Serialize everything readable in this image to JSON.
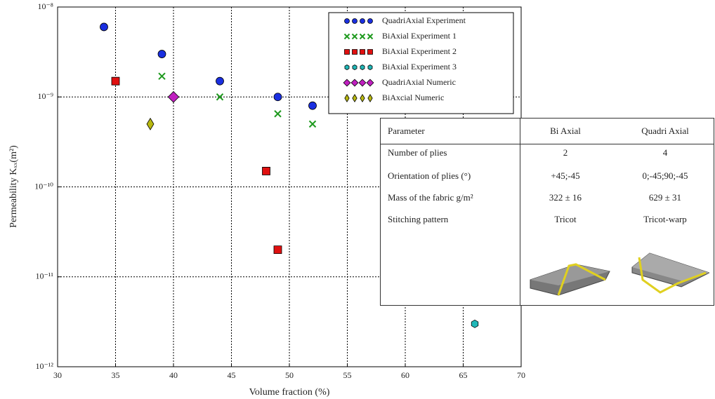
{
  "chart_data": {
    "type": "scatter",
    "x_label": "Volume fraction (%)",
    "y_label": "Permeability Kₓₓ(m²)",
    "xlim": [
      30,
      70
    ],
    "xticks": [
      30,
      35,
      40,
      45,
      50,
      55,
      60,
      65,
      70
    ],
    "ylim": [
      1e-12,
      1e-08
    ],
    "yscale": "log",
    "yticks": [
      {
        "value": 1e-12,
        "label": "10⁻¹²"
      },
      {
        "value": 1e-11,
        "label": "10⁻¹¹"
      },
      {
        "value": 1e-10,
        "label": "10⁻¹⁰"
      },
      {
        "value": 1e-09,
        "label": "10⁻⁹"
      },
      {
        "value": 1e-08,
        "label": "10⁻⁸"
      }
    ],
    "grid": true,
    "legend": "upper right",
    "series": [
      {
        "name": "QuadriAxial Experiment",
        "color": "#1a2fe0",
        "marker": "circle",
        "x": [
          34,
          39,
          44,
          49,
          52
        ],
        "values": [
          6e-09,
          3e-09,
          1.5e-09,
          1e-09,
          8e-10
        ]
      },
      {
        "name": "BiAxial Experiment 1",
        "color": "#1f9a1f",
        "marker": "x",
        "x": [
          39,
          44,
          49,
          52
        ],
        "values": [
          1.7e-09,
          1e-09,
          6.5e-10,
          5e-10
        ]
      },
      {
        "name": "BiAxial Experiment 2",
        "color": "#e01010",
        "marker": "square",
        "x": [
          35,
          48,
          49
        ],
        "values": [
          1.5e-09,
          1.5e-10,
          2e-11
        ]
      },
      {
        "name": "BiAxial Experiment 3",
        "color": "#20b8b8",
        "marker": "hexagon",
        "x": [
          66
        ],
        "values": [
          3e-12
        ]
      },
      {
        "name": "QuadriAxial Numeric",
        "color": "#c020c0",
        "marker": "diamond",
        "x": [
          40
        ],
        "values": [
          1e-09
        ]
      },
      {
        "name": "BiAxcial Numeric",
        "color": "#b8b810",
        "marker": "thin-diamond",
        "x": [
          38
        ],
        "values": [
          5e-10
        ]
      }
    ]
  },
  "table": {
    "header": [
      "Parameter",
      "Bi Axial",
      "Quadri Axial"
    ],
    "rows": [
      [
        "Number of plies",
        "2",
        "4"
      ],
      [
        "Orientation of plies (°)",
        "+45;-45",
        "0;-45;90;-45"
      ],
      [
        "Mass of the fabric g/m²",
        "322 ± 16",
        "629 ± 31"
      ],
      [
        "Stitching pattern",
        "Tricot",
        "Tricot-warp"
      ]
    ]
  }
}
